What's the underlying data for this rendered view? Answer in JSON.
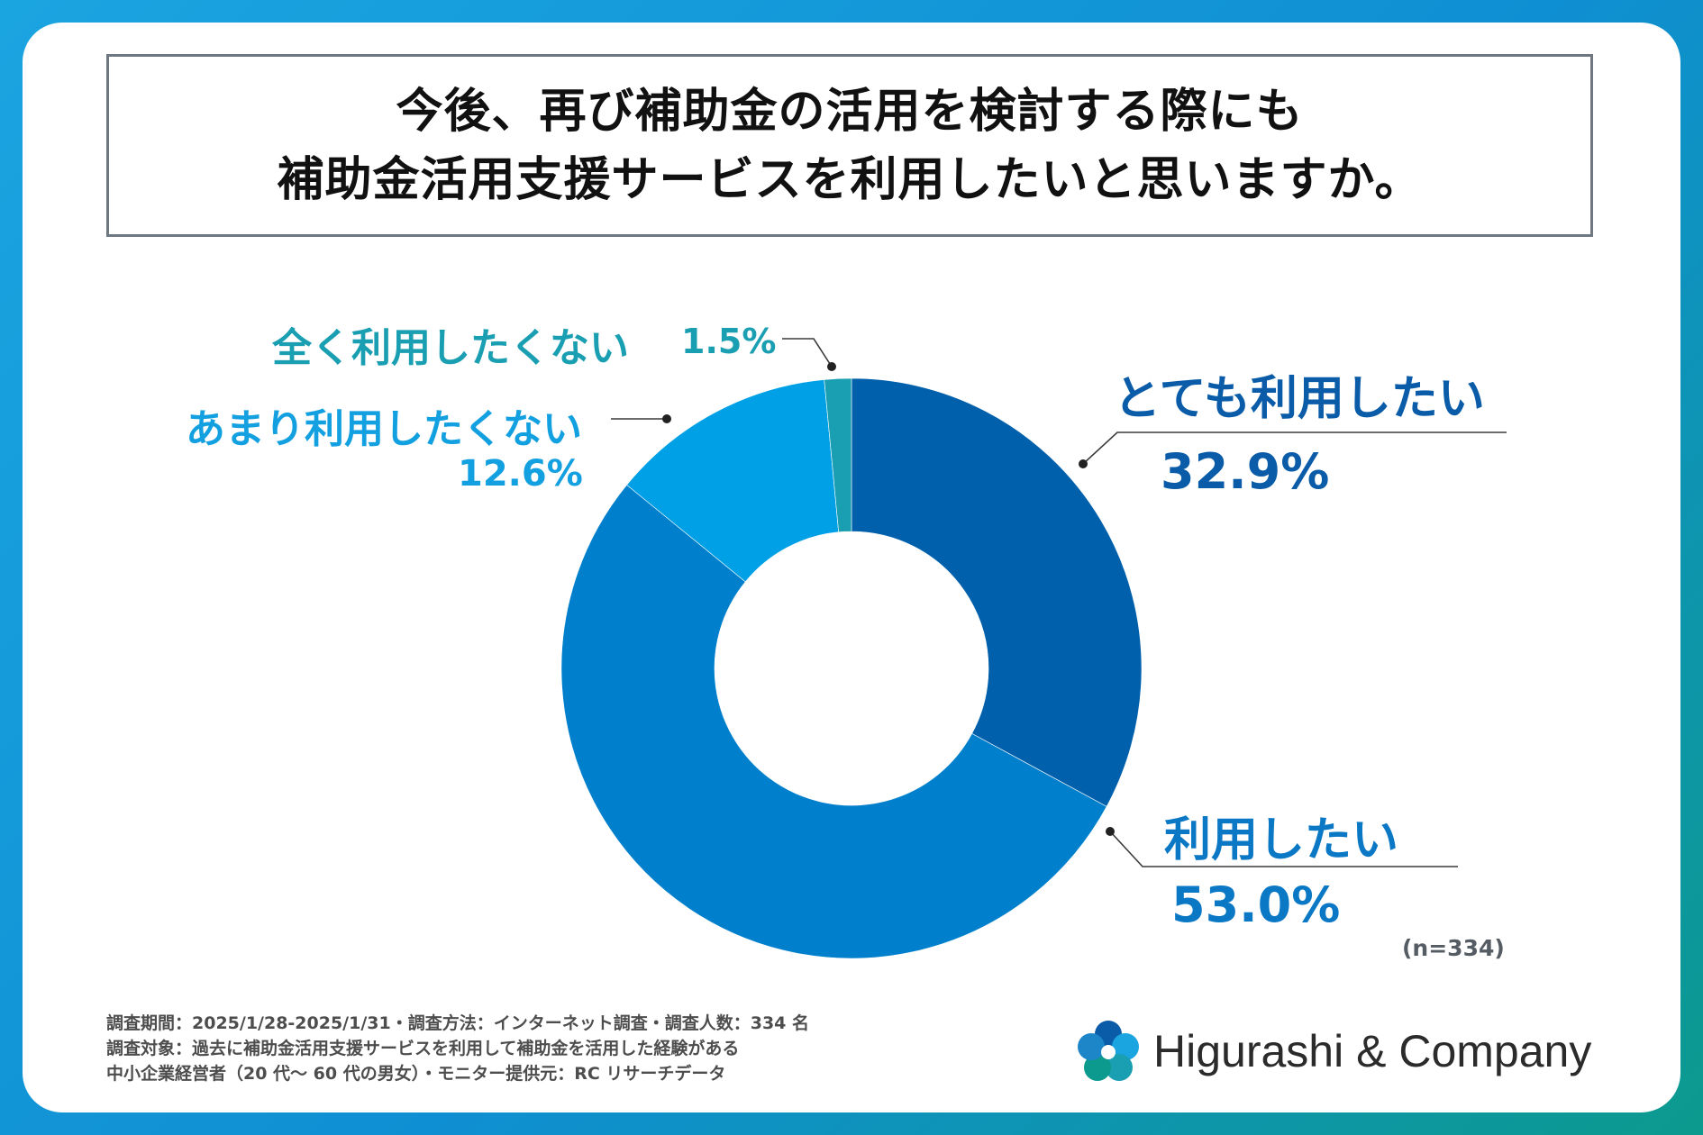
{
  "title": {
    "line1": "今後、再び補助金の活用を検討する際にも",
    "line2": "補助金活用支援サービスを利用したいと思いますか。"
  },
  "chart_data": {
    "type": "pie",
    "donut": true,
    "slices": [
      {
        "label": "とても利用したい",
        "value": 32.9,
        "value_label": "32.9%",
        "color": "#0060ac"
      },
      {
        "label": "利用したい",
        "value": 53.0,
        "value_label": "53.0%",
        "color": "#0080cc"
      },
      {
        "label": "あまり利用したくない",
        "value": 12.6,
        "value_label": "12.6%",
        "color": "#00a0e6"
      },
      {
        "label": "全く利用したくない",
        "value": 1.5,
        "value_label": "1.5%",
        "color": "#1a9fb2"
      }
    ],
    "note": "(n=334)"
  },
  "footnote": {
    "line1": "調査期間：2025/1/28-2025/1/31・調査方法：インターネット調査・調査人数：334 名",
    "line2": "調査対象：過去に補助金活用支援サービスを利用して補助金を活用した経験がある",
    "line3": "中小企業経営者（20 代～ 60 代の男女）・モニター提供元：RC リサーチデータ"
  },
  "logo": {
    "text": "Higurashi & Company",
    "colors": [
      "#0a5ca8",
      "#1aa4e0",
      "#0c9a8e"
    ]
  }
}
